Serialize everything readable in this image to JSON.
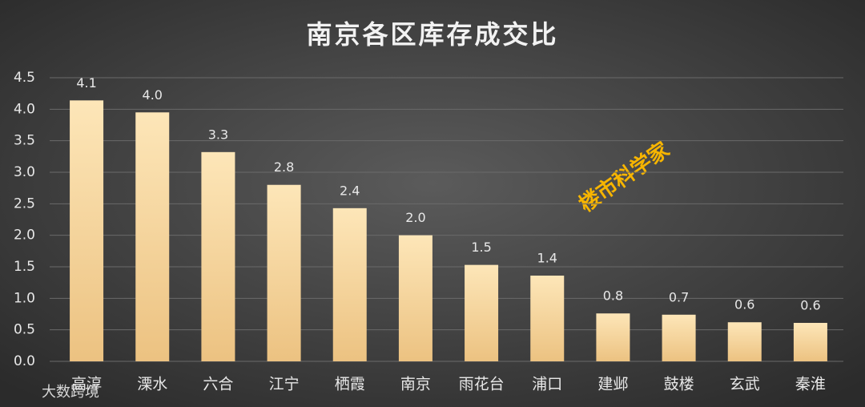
{
  "chart_data": {
    "type": "bar",
    "title": "南京各区库存成交比",
    "categories": [
      "高淳",
      "溧水",
      "六合",
      "江宁",
      "栖霞",
      "南京",
      "雨花台",
      "浦口",
      "建邺",
      "鼓楼",
      "玄武",
      "秦淮"
    ],
    "values": [
      4.14,
      3.95,
      3.32,
      2.8,
      2.43,
      2.0,
      1.53,
      1.36,
      0.76,
      0.74,
      0.62,
      0.61
    ],
    "value_labels": [
      "4.1",
      "4.0",
      "3.3",
      "2.8",
      "2.4",
      "2.0",
      "1.5",
      "1.4",
      "0.8",
      "0.7",
      "0.6",
      "0.6"
    ],
    "color": "#f6d39b",
    "ylim": [
      0,
      4.5
    ],
    "yticks": [
      {
        "value": 0,
        "label": "0.0"
      },
      0.5,
      {
        "value": 1,
        "label": "1.0"
      },
      1.5,
      {
        "value": 2,
        "label": "2.0"
      },
      2.5,
      {
        "value": 3,
        "label": "3.0"
      },
      3.5,
      {
        "value": 4,
        "label": "4.0"
      },
      4.5
    ],
    "grid": true,
    "annotations": [
      "楼市科学家",
      "大数跨境"
    ]
  }
}
